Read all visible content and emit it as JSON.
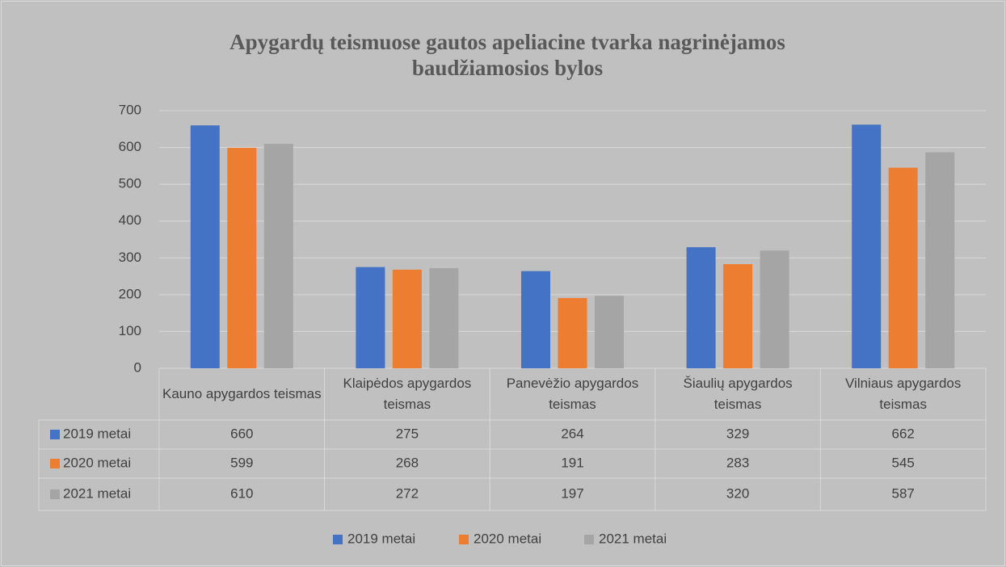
{
  "chart_data": {
    "type": "bar",
    "title": "Apygardų teismuose gautos apeliacine tvarka nagrinėjamos baudžiamosios bylos",
    "categories": [
      "Kauno apygardos teismas",
      "Klaipėdos apygardos teismas",
      "Panevėžio apygardos teismas",
      "Šiaulių apygardos teismas",
      "Vilniaus apygardos teismas"
    ],
    "series": [
      {
        "name": "2019 metai",
        "color": "#4472c4",
        "values": [
          660,
          275,
          264,
          329,
          662
        ]
      },
      {
        "name": "2020 metai",
        "color": "#ed7d31",
        "values": [
          599,
          268,
          191,
          283,
          545
        ]
      },
      {
        "name": "2021 metai",
        "color": "#a5a5a5",
        "values": [
          610,
          272,
          197,
          320,
          587
        ]
      }
    ],
    "ylim": [
      0,
      700
    ],
    "yticks": [
      0,
      100,
      200,
      300,
      400,
      500,
      600,
      700
    ],
    "grid": true,
    "legend": "bottom"
  }
}
